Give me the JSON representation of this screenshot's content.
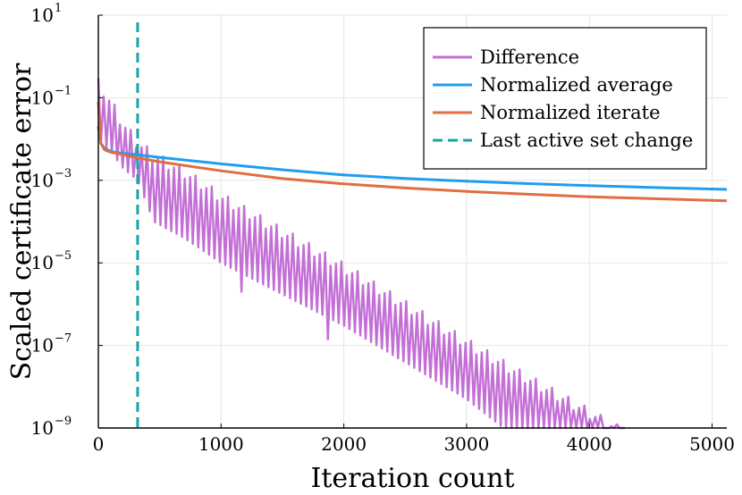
{
  "chart_data": {
    "type": "line",
    "title": "",
    "xlabel": "Iteration count",
    "ylabel": "Scaled certificate error",
    "xscale": "linear",
    "yscale": "log",
    "xlim": [
      0,
      5120
    ],
    "ylim": [
      1e-09,
      10
    ],
    "xticks": [
      0,
      1000,
      2000,
      3000,
      4000,
      5000
    ],
    "xtick_labels": [
      "0",
      "1000",
      "2000",
      "3000",
      "4000",
      "5000"
    ],
    "yticks": [
      1e-09,
      1e-07,
      1e-05,
      0.001,
      0.1,
      10
    ],
    "ytick_labels": [
      {
        "base": "10",
        "exp": "−9"
      },
      {
        "base": "10",
        "exp": "−7"
      },
      {
        "base": "10",
        "exp": "−5"
      },
      {
        "base": "10",
        "exp": "−3"
      },
      {
        "base": "10",
        "exp": "−1"
      },
      {
        "base": "10",
        "exp": "1"
      }
    ],
    "grid": true,
    "legend_position": "top-right",
    "series": [
      {
        "name": "Difference",
        "color": "#c36fd6",
        "style": "oscillating",
        "upper_envelope": [
          [
            0,
            0.3
          ],
          [
            40,
            0.2
          ],
          [
            100,
            0.1
          ],
          [
            200,
            0.03
          ],
          [
            320,
            0.01
          ],
          [
            450,
            0.005
          ],
          [
            700,
            0.002
          ],
          [
            1000,
            0.0005
          ],
          [
            2000,
            1e-05
          ],
          [
            3000,
            1.5e-07
          ],
          [
            3500,
            2e-08
          ],
          [
            4000,
            3e-09
          ],
          [
            4300,
            9e-10
          ]
        ],
        "lower_envelope": [
          [
            0,
            0.01
          ],
          [
            100,
            0.005
          ],
          [
            200,
            0.002
          ],
          [
            320,
            0.001
          ],
          [
            450,
            0.0001
          ],
          [
            700,
            4e-05
          ],
          [
            1000,
            1e-05
          ],
          [
            2000,
            3e-07
          ],
          [
            3000,
            5e-09
          ],
          [
            3300,
            1e-09
          ]
        ],
        "dips": [
          [
            1160,
            2e-06
          ],
          [
            1860,
            1.4e-07
          ],
          [
            2560,
            1.5e-08
          ]
        ]
      },
      {
        "name": "Normalized average",
        "color": "#1f9ef0",
        "style": "solid",
        "x": [
          0,
          20,
          50,
          100,
          200,
          300,
          500,
          1000,
          1500,
          2000,
          2500,
          3000,
          3500,
          4000,
          4500,
          5120
        ],
        "y": [
          0.02,
          0.008,
          0.006,
          0.005,
          0.0045,
          0.0042,
          0.0036,
          0.0025,
          0.0018,
          0.00135,
          0.00111,
          0.00095,
          0.00083,
          0.00074,
          0.00067,
          0.0006
        ]
      },
      {
        "name": "Normalized iterate",
        "color": "#e06e42",
        "style": "solid",
        "x": [
          0,
          20,
          50,
          100,
          200,
          300,
          500,
          1000,
          1500,
          2000,
          2500,
          3000,
          3500,
          4000,
          4500,
          5120
        ],
        "y": [
          0.08,
          0.008,
          0.0055,
          0.0048,
          0.0042,
          0.0036,
          0.0028,
          0.0017,
          0.0011,
          0.00082,
          0.00065,
          0.00054,
          0.00046,
          0.0004,
          0.00036,
          0.00032
        ]
      },
      {
        "name": "Last active set change",
        "color": "#17a3a3",
        "style": "dashed-vertical",
        "x": 320
      }
    ]
  }
}
